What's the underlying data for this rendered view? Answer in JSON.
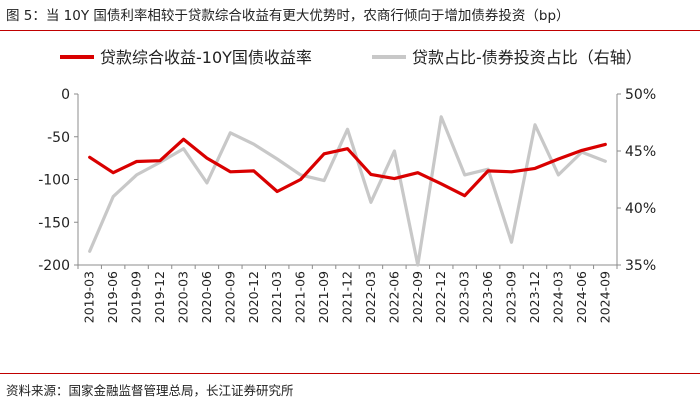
{
  "title": "图 5：当 10Y 国债利率相较于贷款综合收益有更大优势时，农商行倾向于增加债券投资（bp）",
  "source": "资料来源：国家金融监督管理总局，长江证券研究所",
  "colors": {
    "series1": "#d90000",
    "series2": "#c8c8c8",
    "rule": "#c00000"
  },
  "chart_data": {
    "type": "line",
    "categories": [
      "2019-03",
      "2019-06",
      "2019-09",
      "2019-12",
      "2020-03",
      "2020-06",
      "2020-09",
      "2020-12",
      "2021-03",
      "2021-06",
      "2021-09",
      "2021-12",
      "2022-03",
      "2022-06",
      "2022-09",
      "2022-12",
      "2023-03",
      "2023-06",
      "2023-09",
      "2023-12",
      "2024-03",
      "2024-06",
      "2024-09"
    ],
    "series": [
      {
        "name": "贷款综合收益-10Y国债收益率",
        "axis": "left",
        "values": [
          -74,
          -92,
          -79,
          -78,
          -53,
          -75,
          -91,
          -90,
          -114,
          -100,
          -70,
          -64,
          -94,
          -99,
          -92,
          -105,
          -119,
          -90,
          -91,
          -87,
          -76,
          -66,
          -59
        ]
      },
      {
        "name": "贷款占比-债券投资占比（右轴）",
        "axis": "right",
        "values": [
          36.2,
          41.0,
          42.9,
          44.0,
          45.2,
          42.2,
          46.6,
          45.6,
          44.3,
          42.9,
          42.4,
          46.9,
          40.5,
          45.0,
          35.0,
          48.0,
          42.9,
          43.4,
          37.0,
          47.3,
          42.9,
          44.9,
          44.1
        ]
      }
    ],
    "y_left": {
      "lim": [
        -200,
        0
      ],
      "ticks": [
        "0",
        "-50",
        "-100",
        "-150",
        "-200"
      ],
      "tick_values": [
        0,
        -50,
        -100,
        -150,
        -200
      ]
    },
    "y_right": {
      "lim": [
        35,
        50
      ],
      "ticks": [
        "50%",
        "45%",
        "40%",
        "35%"
      ],
      "tick_values": [
        50,
        45,
        40,
        35
      ]
    },
    "grid": false,
    "legend_position": "top"
  }
}
